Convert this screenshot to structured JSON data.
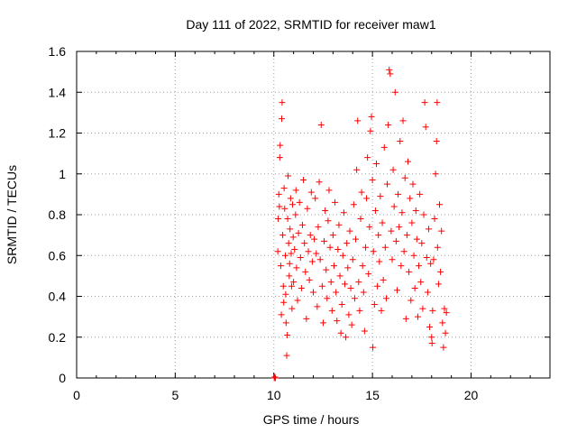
{
  "chart_data": {
    "type": "scatter",
    "title": "Day 111 of 2022, SRMTID for receiver maw1",
    "xlabel": "GPS time / hours",
    "ylabel": "SRMTID / TECUs",
    "xlim": [
      0,
      24
    ],
    "ylim": [
      0,
      1.6
    ],
    "x_ticks": [
      0,
      5,
      10,
      15,
      20
    ],
    "y_ticks": [
      0,
      0.2,
      0.4,
      0.6,
      0.8,
      1.0,
      1.2,
      1.4,
      1.6
    ],
    "x_tick_labels": [
      "0",
      "5",
      "10",
      "15",
      "20"
    ],
    "y_tick_labels": [
      "0",
      "0.2",
      "0.4",
      "0.6",
      "0.8",
      "1",
      "1.2",
      "1.4",
      "1.6"
    ],
    "grid": true,
    "legend": "none",
    "marker": "plus",
    "color": "#ff0000",
    "points": [
      [
        10.02,
        0.0
      ],
      [
        10.05,
        0.005
      ],
      [
        10.08,
        0.0
      ],
      [
        10.2,
        0.62
      ],
      [
        10.22,
        0.78
      ],
      [
        10.25,
        0.9
      ],
      [
        10.28,
        0.84
      ],
      [
        10.3,
        1.08
      ],
      [
        10.32,
        1.14
      ],
      [
        10.35,
        0.55
      ],
      [
        10.38,
        0.31
      ],
      [
        10.4,
        1.27
      ],
      [
        10.42,
        1.35
      ],
      [
        10.45,
        0.7
      ],
      [
        10.48,
        0.45
      ],
      [
        10.5,
        0.37
      ],
      [
        10.52,
        0.93
      ],
      [
        10.55,
        0.83
      ],
      [
        10.58,
        0.6
      ],
      [
        10.6,
        0.41
      ],
      [
        10.62,
        0.27
      ],
      [
        10.65,
        0.11
      ],
      [
        10.68,
        0.21
      ],
      [
        10.7,
        0.78
      ],
      [
        10.72,
        0.99
      ],
      [
        10.75,
        0.66
      ],
      [
        10.78,
        0.5
      ],
      [
        10.8,
        0.56
      ],
      [
        10.82,
        0.73
      ],
      [
        10.85,
        0.88
      ],
      [
        10.88,
        0.61
      ],
      [
        10.9,
        0.45
      ],
      [
        10.92,
        0.34
      ],
      [
        10.95,
        0.85
      ],
      [
        10.98,
        0.69
      ],
      [
        11.0,
        0.47
      ],
      [
        11.05,
        0.63
      ],
      [
        11.1,
        0.8
      ],
      [
        11.12,
        0.92
      ],
      [
        11.15,
        0.54
      ],
      [
        11.2,
        0.38
      ],
      [
        11.25,
        0.71
      ],
      [
        11.3,
        0.86
      ],
      [
        11.35,
        0.59
      ],
      [
        11.4,
        0.44
      ],
      [
        11.45,
        0.75
      ],
      [
        11.5,
        0.97
      ],
      [
        11.55,
        0.66
      ],
      [
        11.6,
        0.52
      ],
      [
        11.65,
        0.29
      ],
      [
        11.7,
        0.83
      ],
      [
        11.75,
        0.62
      ],
      [
        11.8,
        0.48
      ],
      [
        11.85,
        0.7
      ],
      [
        11.9,
        0.91
      ],
      [
        11.95,
        0.57
      ],
      [
        12.0,
        0.42
      ],
      [
        12.05,
        0.68
      ],
      [
        12.1,
        0.88
      ],
      [
        12.15,
        0.61
      ],
      [
        12.2,
        0.35
      ],
      [
        12.25,
        0.74
      ],
      [
        12.3,
        0.96
      ],
      [
        12.35,
        0.58
      ],
      [
        12.4,
        1.24
      ],
      [
        12.45,
        0.45
      ],
      [
        12.5,
        0.27
      ],
      [
        12.55,
        0.67
      ],
      [
        12.6,
        0.82
      ],
      [
        12.65,
        0.53
      ],
      [
        12.7,
        0.39
      ],
      [
        12.75,
        0.77
      ],
      [
        12.8,
        0.92
      ],
      [
        12.85,
        0.64
      ],
      [
        12.9,
        0.47
      ],
      [
        12.95,
        0.33
      ],
      [
        13.0,
        0.7
      ],
      [
        13.05,
        0.55
      ],
      [
        13.1,
        0.86
      ],
      [
        13.15,
        0.42
      ],
      [
        13.2,
        0.28
      ],
      [
        13.25,
        0.63
      ],
      [
        13.3,
        0.75
      ],
      [
        13.35,
        0.5
      ],
      [
        13.4,
        0.22
      ],
      [
        13.45,
        0.36
      ],
      [
        13.5,
        0.6
      ],
      [
        13.55,
        0.81
      ],
      [
        13.6,
        0.46
      ],
      [
        13.65,
        0.2
      ],
      [
        13.7,
        0.66
      ],
      [
        13.75,
        0.54
      ],
      [
        13.8,
        0.31
      ],
      [
        13.85,
        0.72
      ],
      [
        13.9,
        0.44
      ],
      [
        13.95,
        0.26
      ],
      [
        14.0,
        0.58
      ],
      [
        14.05,
        0.85
      ],
      [
        14.1,
        0.39
      ],
      [
        14.15,
        0.68
      ],
      [
        14.2,
        1.02
      ],
      [
        14.25,
        1.26
      ],
      [
        14.3,
        0.47
      ],
      [
        14.35,
        0.33
      ],
      [
        14.4,
        0.78
      ],
      [
        14.45,
        0.91
      ],
      [
        14.5,
        0.55
      ],
      [
        14.55,
        0.42
      ],
      [
        14.6,
        0.23
      ],
      [
        14.65,
        0.64
      ],
      [
        14.7,
        0.88
      ],
      [
        14.75,
        1.08
      ],
      [
        14.8,
        0.51
      ],
      [
        14.85,
        0.74
      ],
      [
        14.9,
        1.21
      ],
      [
        14.95,
        1.28
      ],
      [
        15.0,
        0.97
      ],
      [
        15.02,
        0.15
      ],
      [
        15.05,
        0.62
      ],
      [
        15.1,
        0.36
      ],
      [
        15.15,
        0.82
      ],
      [
        15.2,
        1.05
      ],
      [
        15.25,
        0.45
      ],
      [
        15.3,
        0.7
      ],
      [
        15.35,
        0.57
      ],
      [
        15.4,
        0.89
      ],
      [
        15.45,
        0.33
      ],
      [
        15.5,
        0.76
      ],
      [
        15.55,
        0.48
      ],
      [
        15.6,
        1.13
      ],
      [
        15.65,
        0.64
      ],
      [
        15.7,
        0.39
      ],
      [
        15.75,
        0.95
      ],
      [
        15.8,
        1.24
      ],
      [
        15.85,
        1.51
      ],
      [
        15.9,
        1.49
      ],
      [
        15.95,
        0.72
      ],
      [
        16.0,
        0.58
      ],
      [
        16.05,
        1.02
      ],
      [
        16.1,
        0.84
      ],
      [
        16.15,
        1.4
      ],
      [
        16.2,
        0.67
      ],
      [
        16.25,
        0.43
      ],
      [
        16.3,
        0.9
      ],
      [
        16.35,
        0.74
      ],
      [
        16.4,
        1.16
      ],
      [
        16.45,
        0.55
      ],
      [
        16.5,
        0.81
      ],
      [
        16.55,
        1.26
      ],
      [
        16.6,
        0.62
      ],
      [
        16.65,
        0.98
      ],
      [
        16.7,
        0.29
      ],
      [
        16.75,
        0.7
      ],
      [
        16.8,
        1.06
      ],
      [
        16.85,
        0.52
      ],
      [
        16.9,
        0.88
      ],
      [
        16.95,
        0.38
      ],
      [
        17.0,
        0.76
      ],
      [
        17.05,
        0.95
      ],
      [
        17.1,
        0.6
      ],
      [
        17.15,
        0.44
      ],
      [
        17.2,
        0.82
      ],
      [
        17.25,
        0.68
      ],
      [
        17.3,
        0.3
      ],
      [
        17.35,
        0.55
      ],
      [
        17.4,
        0.9
      ],
      [
        17.45,
        0.47
      ],
      [
        17.5,
        0.66
      ],
      [
        17.55,
        0.34
      ],
      [
        17.6,
        0.8
      ],
      [
        17.65,
        1.35
      ],
      [
        17.7,
        1.23
      ],
      [
        17.75,
        0.59
      ],
      [
        17.8,
        0.42
      ],
      [
        17.85,
        0.73
      ],
      [
        17.9,
        0.25
      ],
      [
        17.95,
        0.56
      ],
      [
        18.0,
        0.2
      ],
      [
        18.02,
        0.17
      ],
      [
        18.05,
        0.33
      ],
      [
        18.1,
        0.58
      ],
      [
        18.15,
        0.78
      ],
      [
        18.2,
        1.0
      ],
      [
        18.25,
        1.16
      ],
      [
        18.28,
        1.35
      ],
      [
        18.3,
        0.64
      ],
      [
        18.35,
        0.46
      ],
      [
        18.4,
        0.85
      ],
      [
        18.45,
        0.52
      ],
      [
        18.5,
        0.72
      ],
      [
        18.55,
        0.27
      ],
      [
        18.6,
        0.15
      ],
      [
        18.65,
        0.34
      ],
      [
        18.7,
        0.22
      ],
      [
        18.75,
        0.32
      ]
    ]
  }
}
